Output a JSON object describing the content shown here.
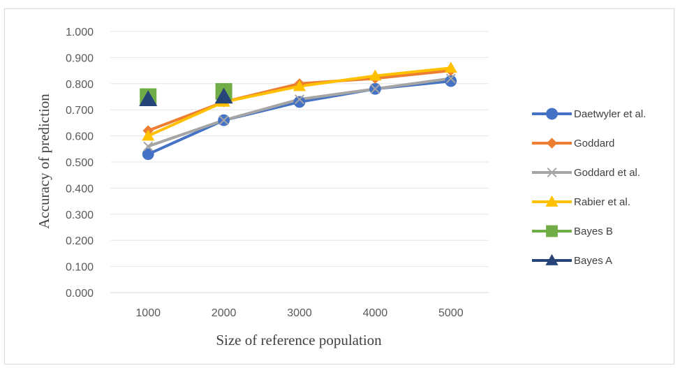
{
  "chart_data": {
    "type": "line",
    "xlabel": "Size of reference population",
    "ylabel": "Accuracy of prediction",
    "x": [
      1000,
      2000,
      3000,
      4000,
      5000
    ],
    "ylim": [
      0,
      1
    ],
    "y_ticks": [
      "0.000",
      "0.100",
      "0.200",
      "0.300",
      "0.400",
      "0.500",
      "0.600",
      "0.700",
      "0.800",
      "0.900",
      "1.000"
    ],
    "x_ticks": [
      "1000",
      "2000",
      "3000",
      "4000",
      "5000"
    ],
    "grid": "horizontal",
    "legend_position": "right",
    "series": [
      {
        "name": "Daetwyler et al.",
        "values": [
          0.53,
          0.66,
          0.73,
          0.78,
          0.81
        ],
        "color": "#4472C4",
        "marker": "circle"
      },
      {
        "name": "Goddard",
        "values": [
          0.62,
          0.73,
          0.8,
          0.82,
          0.85
        ],
        "color": "#ED7D31",
        "marker": "diamond"
      },
      {
        "name": "Goddard et  al.",
        "values": [
          0.56,
          0.66,
          0.74,
          0.78,
          0.82
        ],
        "color": "#A5A5A5",
        "marker": "x"
      },
      {
        "name": "Rabier et al.",
        "values": [
          0.6,
          0.73,
          0.79,
          0.83,
          0.86
        ],
        "color": "#FFC000",
        "marker": "triangle"
      },
      {
        "name": "Bayes B",
        "values": [
          0.75,
          0.77,
          null,
          null,
          null
        ],
        "color": "#70AD47",
        "marker": "square"
      },
      {
        "name": "Bayes A",
        "values": [
          0.74,
          0.75,
          null,
          null,
          null
        ],
        "color": "#264478",
        "marker": "triangle"
      }
    ]
  }
}
